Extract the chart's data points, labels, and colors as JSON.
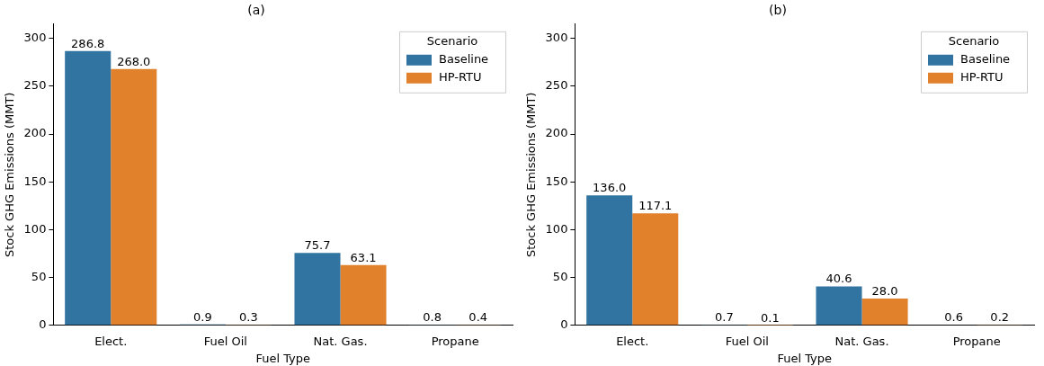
{
  "chart_data": [
    {
      "type": "bar",
      "title": "(a)",
      "xlabel": "Fuel Type",
      "ylabel": "Stock GHG Emissions (MMT)",
      "legend_title": "Scenario",
      "categories": [
        "Elect.",
        "Fuel Oil",
        "Nat. Gas.",
        "Propane"
      ],
      "series": [
        {
          "name": "Baseline",
          "color": "#3274a1",
          "values": [
            286.8,
            0.9,
            75.7,
            0.8
          ],
          "value_labels": [
            "286.8",
            "0.9",
            "75.7",
            "0.8"
          ]
        },
        {
          "name": "HP-RTU",
          "color": "#e1812c",
          "values": [
            268.0,
            0.3,
            63.1,
            0.4
          ],
          "value_labels": [
            "268.0",
            "0.3",
            "63.1",
            "0.4"
          ]
        }
      ],
      "ylim": [
        0,
        315
      ],
      "yticks": [
        0,
        50,
        100,
        150,
        200,
        250,
        300
      ],
      "grid": false,
      "legend": "top right"
    },
    {
      "type": "bar",
      "title": "(b)",
      "xlabel": "Fuel Type",
      "ylabel": "Stock GHG Emissions (MMT)",
      "legend_title": "Scenario",
      "categories": [
        "Elect.",
        "Fuel Oil",
        "Nat. Gas.",
        "Propane"
      ],
      "series": [
        {
          "name": "Baseline",
          "color": "#3274a1",
          "values": [
            136.0,
            0.7,
            40.6,
            0.6
          ],
          "value_labels": [
            "136.0",
            "0.7",
            "40.6",
            "0.6"
          ]
        },
        {
          "name": "HP-RTU",
          "color": "#e1812c",
          "values": [
            117.1,
            0.1,
            28.0,
            0.2
          ],
          "value_labels": [
            "117.1",
            "0.1",
            "28.0",
            "0.2"
          ]
        }
      ],
      "ylim": [
        0,
        315
      ],
      "yticks": [
        0,
        50,
        100,
        150,
        200,
        250,
        300
      ],
      "grid": false,
      "legend": "top right"
    }
  ]
}
